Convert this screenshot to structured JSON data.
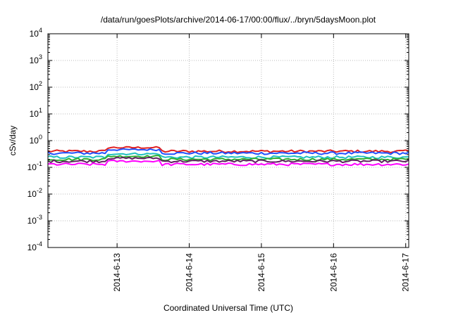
{
  "chart_data": {
    "type": "line",
    "title": "/data/run/goesPlots/archive/2014-06-17/00:00/flux/../bryn/5daysMoon.plot",
    "xlabel": "Coordinated Universal Time (UTC)",
    "ylabel": "cSv/day",
    "yscale": "log",
    "ylim": [
      0.0001,
      10000
    ],
    "xlim": [
      "2014-06-12 01:00",
      "2014-06-17 01:00"
    ],
    "x_ticks": [
      "2014-6-13",
      "2014-6-14",
      "2014-6-15",
      "2014-6-16",
      "2014-6-17"
    ],
    "y_ticks": [
      {
        "base": "10",
        "exp": "4"
      },
      {
        "base": "10",
        "exp": "3"
      },
      {
        "base": "10",
        "exp": "2"
      },
      {
        "base": "10",
        "exp": "1"
      },
      {
        "base": "10",
        "exp": "0"
      },
      {
        "base": "10",
        "exp": "-1"
      },
      {
        "base": "10",
        "exp": "-2"
      },
      {
        "base": "10",
        "exp": "-3"
      },
      {
        "base": "10",
        "exp": "-4"
      }
    ],
    "grid": true,
    "series": [
      {
        "color": "#e02020",
        "level": 0.4,
        "bump": 0.15
      },
      {
        "color": "#2050ff",
        "level": 0.34,
        "bump": 0.12
      },
      {
        "color": "#20c0c0",
        "level": 0.24,
        "bump": 0.08
      },
      {
        "color": "#30b030",
        "level": 0.2,
        "bump": 0.06
      },
      {
        "color": "#602060",
        "level": 0.17,
        "bump": 0.05
      },
      {
        "color": "#ff00ff",
        "level": 0.13,
        "bump": 0.04
      }
    ]
  }
}
